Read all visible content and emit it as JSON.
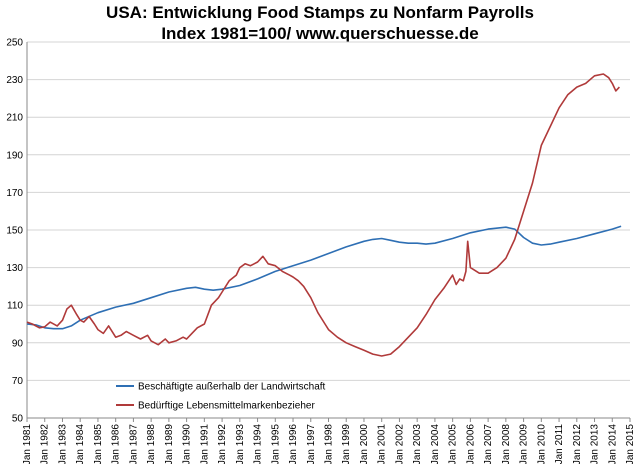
{
  "chart_data": {
    "type": "line",
    "title": "USA: Entwicklung Food Stamps zu Nonfarm Payrolls",
    "subtitle": "Index 1981=100/ www.querschuesse.de",
    "ylim": [
      50,
      250
    ],
    "yticks": [
      50,
      70,
      90,
      110,
      130,
      150,
      170,
      190,
      210,
      230,
      250
    ],
    "xlim": [
      1981,
      2015
    ],
    "xticks": [
      "Jan 1981",
      "Jan 1982",
      "Jan 1983",
      "Jan 1984",
      "Jan 1985",
      "Jan 1986",
      "Jan 1987",
      "Jan 1988",
      "Jan 1989",
      "Jan 1990",
      "Jan 1991",
      "Jan 1992",
      "Jan 1993",
      "Jan 1994",
      "Jan 1995",
      "Jan 1996",
      "Jan 1997",
      "Jan 1998",
      "Jan 1999",
      "Jan 2000",
      "Jan 2001",
      "Jan 2002",
      "Jan 2003",
      "Jan 2004",
      "Jan 2005",
      "Jan 2006",
      "Jan 2007",
      "Jan 2008",
      "Jan 2009",
      "Jan 2010",
      "Jan 2011",
      "Jan 2012",
      "Jan 2013",
      "Jan 2014",
      "Jan 2015"
    ],
    "grid": "horizontal",
    "legend_position": "bottom-left",
    "series": [
      {
        "name": "Beschäftigte außerhalb der Landwirtschaft",
        "color": "#2e6fb4",
        "x": [
          1981,
          1981.5,
          1982,
          1982.5,
          1983,
          1983.5,
          1984,
          1985,
          1986,
          1987,
          1988,
          1989,
          1990,
          1990.5,
          1991,
          1991.5,
          1992,
          1993,
          1994,
          1995,
          1996,
          1997,
          1998,
          1999,
          2000,
          2000.5,
          2001,
          2001.5,
          2002,
          2002.5,
          2003,
          2003.5,
          2004,
          2005,
          2006,
          2007,
          2008,
          2008.5,
          2009,
          2009.5,
          2010,
          2010.5,
          2011,
          2012,
          2013,
          2014,
          2014.5
        ],
        "y": [
          100,
          99.5,
          98,
          97.5,
          97.5,
          99,
          102,
          106,
          109,
          111,
          114,
          117,
          119,
          119.5,
          118.5,
          118,
          118.5,
          120.5,
          124,
          128,
          131,
          134,
          137.5,
          141,
          144,
          145,
          145.5,
          144.5,
          143.5,
          143,
          143,
          142.5,
          143,
          145.5,
          148.5,
          150.5,
          151.5,
          150.5,
          146,
          143,
          142,
          142.5,
          143.5,
          145.5,
          148,
          150.5,
          152
        ]
      },
      {
        "name": "Bedürftige Lebensmittelmarkenbezieher",
        "color": "#b03a3a",
        "x": [
          1981,
          1981.3,
          1981.7,
          1982,
          1982.3,
          1982.7,
          1983,
          1983.25,
          1983.5,
          1983.8,
          1984,
          1984.2,
          1984.5,
          1984.8,
          1985,
          1985.3,
          1985.6,
          1986,
          1986.3,
          1986.6,
          1987,
          1987.4,
          1987.8,
          1988,
          1988.4,
          1988.8,
          1989,
          1989.4,
          1989.8,
          1990,
          1990.3,
          1990.6,
          1991,
          1991.4,
          1991.8,
          1992,
          1992.4,
          1992.8,
          1993,
          1993.3,
          1993.6,
          1994,
          1994.3,
          1994.6,
          1995,
          1995.4,
          1995.8,
          1996,
          1996.3,
          1996.6,
          1997,
          1997.4,
          1997.8,
          1998,
          1998.5,
          1999,
          1999.5,
          2000,
          2000.5,
          2001,
          2001.5,
          2002,
          2002.5,
          2003,
          2003.5,
          2004,
          2004.5,
          2005,
          2005.2,
          2005.4,
          2005.6,
          2005.75,
          2005.85,
          2006,
          2006.5,
          2007,
          2007.5,
          2008,
          2008.5,
          2009,
          2009.5,
          2010,
          2010.5,
          2011,
          2011.5,
          2012,
          2012.5,
          2013,
          2013.5,
          2013.8,
          2014,
          2014.2,
          2014.4
        ],
        "y": [
          101,
          100,
          98,
          98.5,
          101,
          99,
          102,
          108,
          110,
          105,
          102,
          101,
          104,
          100,
          97,
          95,
          99,
          93,
          94,
          96,
          94,
          92,
          94,
          91,
          89,
          92,
          90,
          91,
          93,
          92,
          95,
          98,
          100,
          110,
          114,
          117,
          123,
          126,
          130,
          132,
          131,
          133,
          136,
          132,
          131,
          128,
          126,
          125,
          123,
          120,
          114,
          106,
          100,
          97,
          93,
          90,
          88,
          86,
          84,
          83,
          84,
          88,
          93,
          98,
          105,
          113,
          119,
          126,
          121,
          124,
          123,
          128,
          144,
          130,
          127,
          127,
          130,
          135,
          145,
          160,
          175,
          195,
          205,
          215,
          222,
          226,
          228,
          232,
          233,
          231,
          228,
          224,
          226
        ]
      }
    ]
  }
}
